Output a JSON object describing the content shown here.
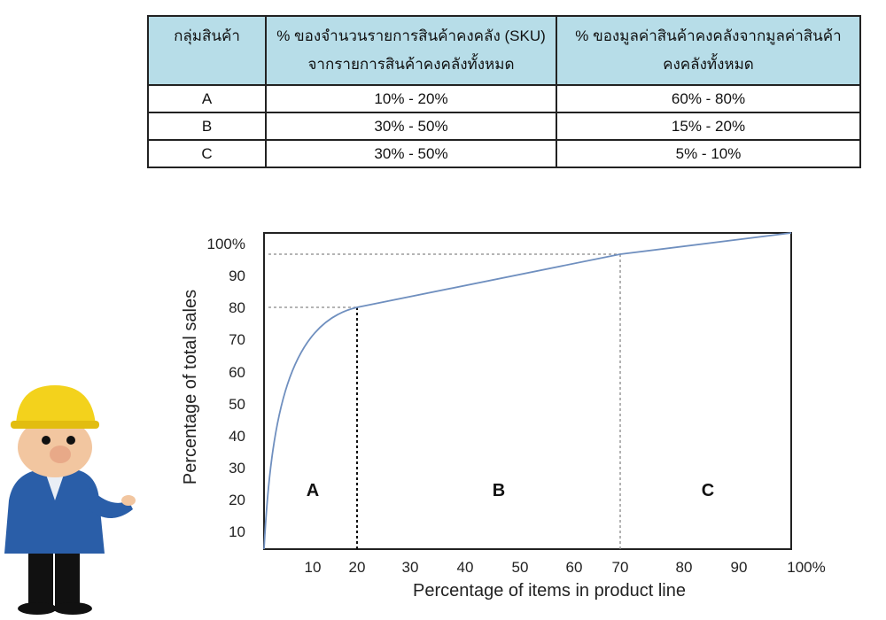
{
  "table": {
    "headers": [
      "กลุ่มสินค้า",
      "% ของจำนวนรายการสินค้าคงคลัง (SKU) จากรายการสินค้าคงคลังทั้งหมด",
      "% ของมูลค่าสินค้าคงคลังจากมูลค่าสินค้าคงคลังทั้งหมด"
    ],
    "rows": [
      [
        "A",
        "10% - 20%",
        "60% - 80%"
      ],
      [
        "B",
        "30% - 50%",
        "15% - 20%"
      ],
      [
        "C",
        "30% - 50%",
        "5% - 10%"
      ]
    ],
    "header_color": "#b7dde8"
  },
  "chart_data": {
    "type": "line",
    "xlabel": "Percentage of items in product line",
    "ylabel": "Percentage of total sales",
    "xlim": [
      0,
      100
    ],
    "ylim": [
      0,
      100
    ],
    "x_ticks": [
      "10",
      "20",
      "30",
      "40",
      "50",
      "60",
      "70",
      "80",
      "90",
      "100%"
    ],
    "y_ticks": [
      "10",
      "20",
      "30",
      "40",
      "50",
      "60",
      "70",
      "80",
      "90",
      "100%"
    ],
    "series": [
      {
        "x": [
          0,
          5,
          10,
          15,
          20,
          70,
          100
        ],
        "y": [
          0,
          45,
          68,
          77,
          80,
          95,
          100
        ],
        "color": "#6f8fbf"
      }
    ],
    "reference_lines": [
      {
        "x": 20,
        "y": 80
      },
      {
        "x": 70,
        "y": 95
      }
    ],
    "regions": [
      "A",
      "B",
      "C"
    ],
    "grid": false
  }
}
